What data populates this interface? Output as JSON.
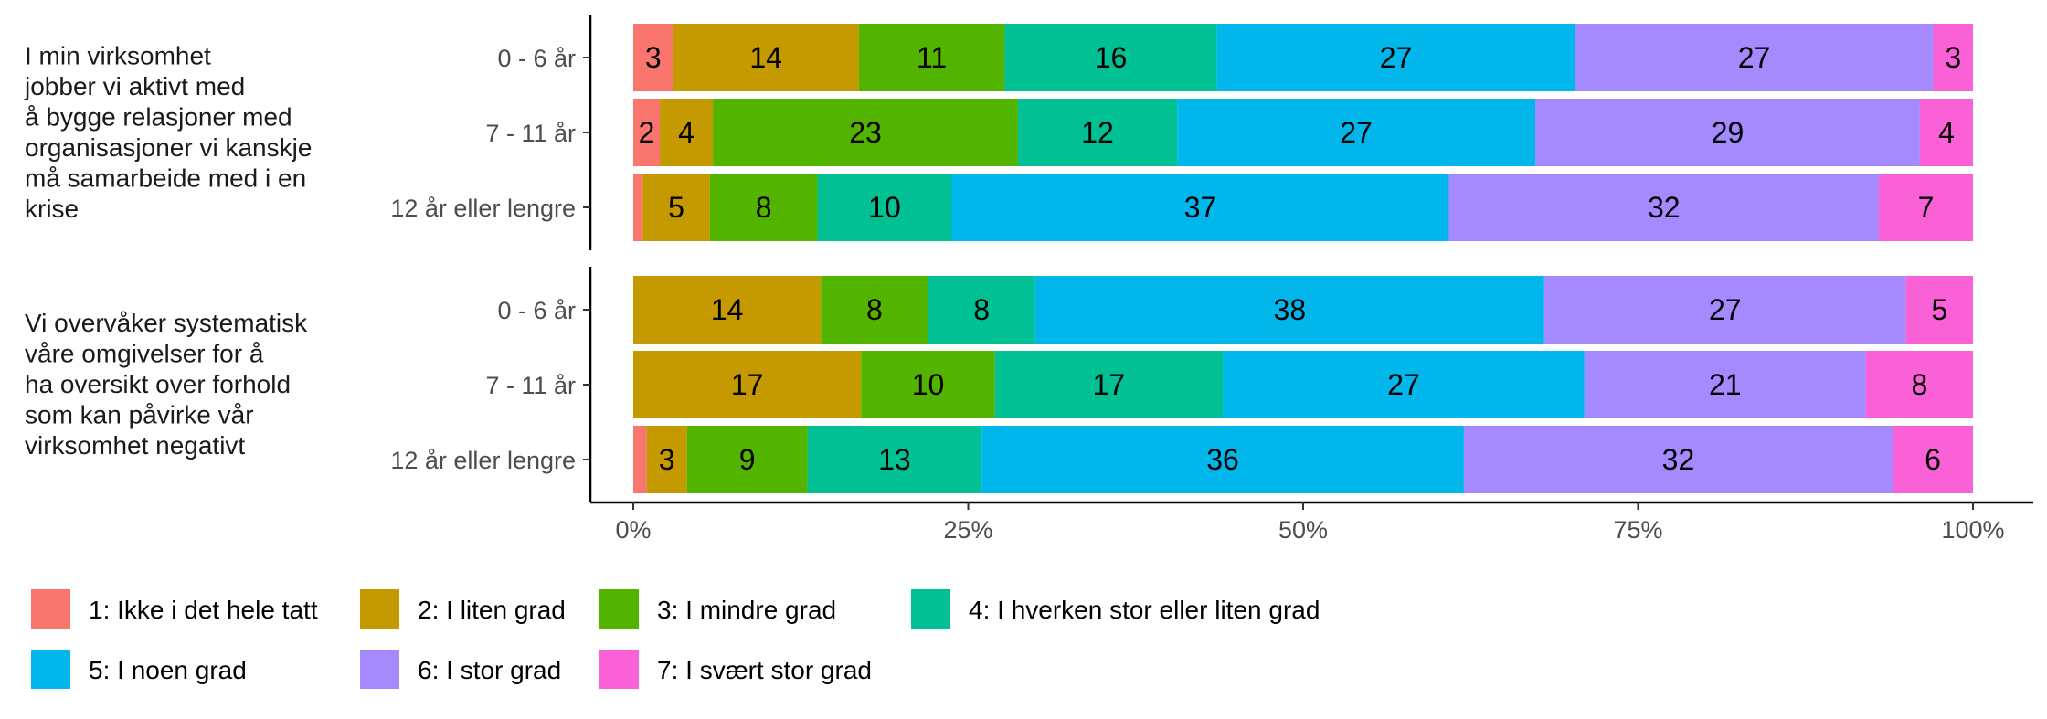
{
  "chart_data": {
    "type": "bar",
    "orientation": "horizontal",
    "stacked": "percent",
    "xlim": [
      0,
      100
    ],
    "x_ticks": [
      "0%",
      "25%",
      "50%",
      "75%",
      "100%"
    ],
    "x_tick_values": [
      0,
      25,
      50,
      75,
      100
    ],
    "grid": false,
    "legend_position": "bottom",
    "panels": [
      {
        "label": "I min virksomhet jobber vi aktivt med å bygge relasjoner med organisasjoner vi kanskje må samarbeide med i en krise",
        "label_lines": [
          "I min virksomhet",
          "jobber vi aktivt med",
          "å bygge relasjoner med",
          "organisasjoner vi kanskje",
          "må samarbeide med i en",
          "krise"
        ],
        "rows": [
          {
            "category": "0 - 6 år",
            "values": [
              3,
              14,
              11,
              16,
              27,
              27,
              3
            ],
            "labels": [
              "3",
              "14",
              "11",
              "16",
              "27",
              "27",
              "3"
            ]
          },
          {
            "category": "7 - 11 år",
            "values": [
              2,
              4,
              23,
              12,
              27,
              29,
              4
            ],
            "labels": [
              "2",
              "4",
              "23",
              "12",
              "27",
              "29",
              "4"
            ]
          },
          {
            "category": "12 år eller lengre",
            "values": [
              0.7,
              5,
              8,
              10,
              37,
              32,
              7
            ],
            "labels": [
              "",
              "5",
              "8",
              "10",
              "37",
              "32",
              "7"
            ]
          }
        ]
      },
      {
        "label": "Vi overvåker systematisk våre omgivelser for å ha oversikt over forhold som kan påvirke vår virksomhet negativt",
        "label_lines": [
          "Vi overvåker systematisk",
          "våre omgivelser for å",
          "ha oversikt over forhold",
          "som kan påvirke vår",
          "virksomhet negativt"
        ],
        "rows": [
          {
            "category": "0 - 6 år",
            "values": [
              0,
              14,
              8,
              8,
              38,
              27,
              5
            ],
            "labels": [
              "",
              "14",
              "8",
              "8",
              "38",
              "27",
              "5"
            ]
          },
          {
            "category": "7 - 11 år",
            "values": [
              0,
              17,
              10,
              17,
              27,
              21,
              8
            ],
            "labels": [
              "",
              "17",
              "10",
              "17",
              "27",
              "21",
              "8"
            ]
          },
          {
            "category": "12 år eller lengre",
            "values": [
              1,
              3,
              9,
              13,
              36,
              32,
              6
            ],
            "labels": [
              "",
              "3",
              "9",
              "13",
              "36",
              "32",
              "6"
            ]
          }
        ]
      }
    ],
    "legend": [
      {
        "name": "1: Ikke i det hele tatt",
        "color": "#F8766D"
      },
      {
        "name": "2: I liten grad",
        "color": "#C49A00"
      },
      {
        "name": "3: I mindre grad",
        "color": "#53B400"
      },
      {
        "name": "4: I hverken stor eller liten grad",
        "color": "#00C094"
      },
      {
        "name": "5: I noen grad",
        "color": "#00B6EB"
      },
      {
        "name": "6: I stor grad",
        "color": "#A58AFF"
      },
      {
        "name": "7: I svært stor grad",
        "color": "#FB61D7"
      }
    ]
  }
}
